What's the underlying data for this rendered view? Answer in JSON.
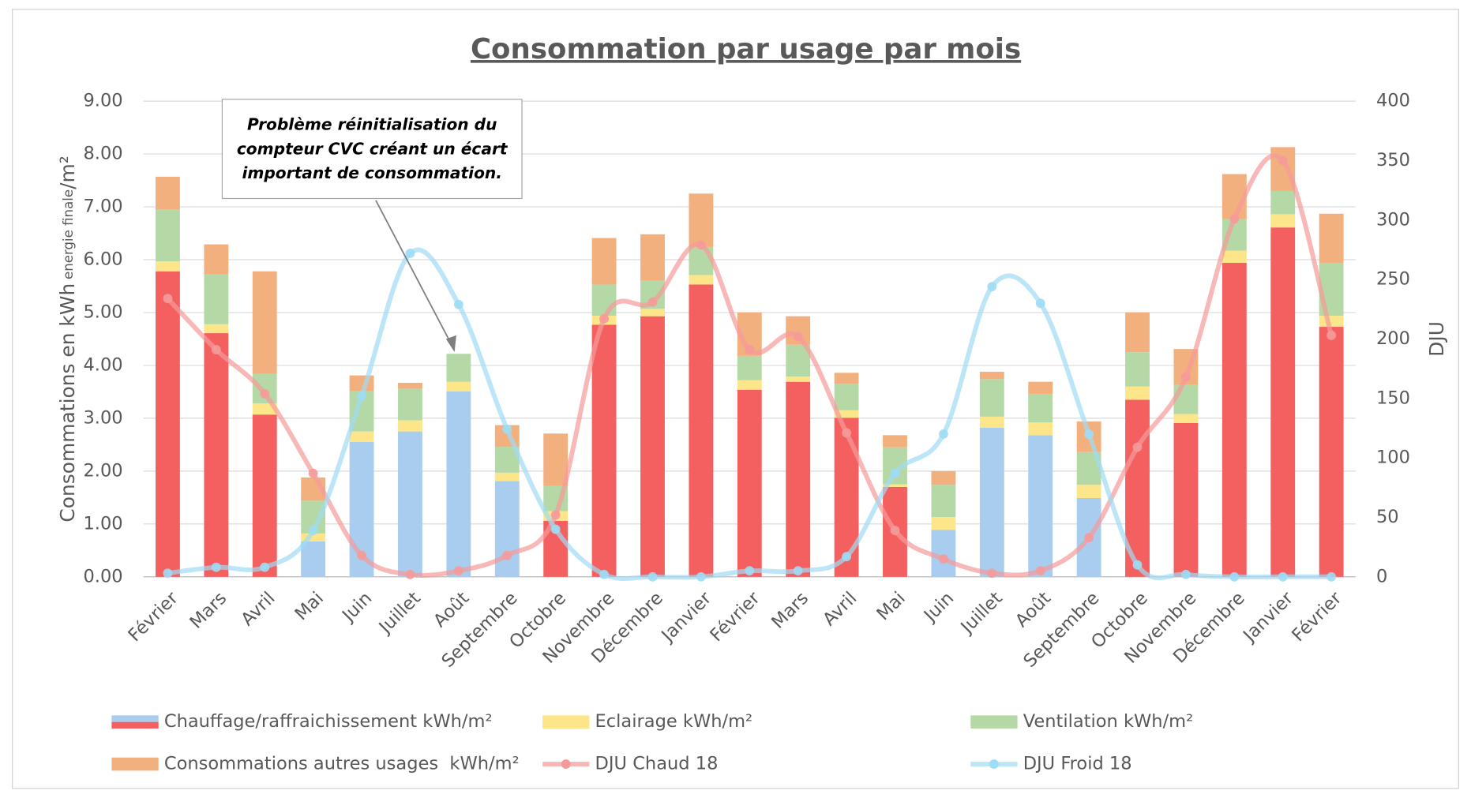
{
  "chart_data": {
    "type": "bar",
    "stacked": true,
    "title": "Consommation par usage par mois",
    "y_label": [
      "Consommations en kWh",
      "energie finale",
      "/m²"
    ],
    "y2_label": "DJU",
    "annotation": [
      "Problème réinitialisation du",
      "compteur CVC créant un écart",
      "important de consommation."
    ],
    "categories": [
      "Février",
      "Mars",
      "Avril",
      "Mai",
      "Juin",
      "Juillet",
      "Août",
      "Septembre",
      "Octobre",
      "Novembre",
      "Décembre",
      "Janvier",
      "Février",
      "Mars",
      "Avril",
      "Mai",
      "Juin",
      "Juillet",
      "Août",
      "Septembre",
      "Octobre",
      "Novembre",
      "Décembre",
      "Janvier",
      "Février"
    ],
    "ylim": [
      0,
      9
    ],
    "yticks": [
      {
        "value": 0,
        "label": "0.00"
      },
      {
        "value": 1,
        "label": "1.00"
      },
      {
        "value": 2,
        "label": "2.00"
      },
      {
        "value": 3,
        "label": "3.00"
      },
      {
        "value": 4,
        "label": "4.00"
      },
      {
        "value": 5,
        "label": "5.00"
      },
      {
        "value": 6,
        "label": "6.00"
      },
      {
        "value": 7,
        "label": "7.00"
      },
      {
        "value": 8,
        "label": "8.00"
      },
      {
        "value": 9,
        "label": "9.00"
      }
    ],
    "y2lim": [
      0,
      400
    ],
    "y2ticks": [
      0,
      50,
      100,
      150,
      200,
      250,
      300,
      350,
      400
    ],
    "grid": true,
    "legend": "bottom",
    "series": [
      {
        "name": "Chauffage/raffraichissement kWh/m²",
        "type": "bar",
        "color": "#f46060",
        "point_colors": [
          "#f46060",
          "#f46060",
          "#f46060",
          "#a9cdee",
          "#a9cdee",
          "#a9cdee",
          "#a9cdee",
          "#a9cdee",
          "#f46060",
          "#f46060",
          "#f46060",
          "#f46060",
          "#f46060",
          "#f46060",
          "#f46060",
          "#f46060",
          "#a9cdee",
          "#a9cdee",
          "#a9cdee",
          "#a9cdee",
          "#f46060",
          "#f46060",
          "#f46060",
          "#f46060",
          "#f46060"
        ],
        "values": [
          5.78,
          4.61,
          3.07,
          0.67,
          2.55,
          2.75,
          3.51,
          1.81,
          1.06,
          4.77,
          4.93,
          5.53,
          3.54,
          3.69,
          3.01,
          1.7,
          0.89,
          2.82,
          2.68,
          1.49,
          3.35,
          2.91,
          5.94,
          6.61,
          4.73
        ]
      },
      {
        "name": "Eclairage kWh/m²",
        "type": "bar",
        "color": "#fde58a",
        "values": [
          0.19,
          0.17,
          0.21,
          0.15,
          0.2,
          0.21,
          0.18,
          0.16,
          0.18,
          0.17,
          0.14,
          0.18,
          0.18,
          0.1,
          0.14,
          0.05,
          0.24,
          0.21,
          0.24,
          0.25,
          0.25,
          0.17,
          0.23,
          0.25,
          0.21
        ]
      },
      {
        "name": "Ventilation kWh/m²",
        "type": "bar",
        "color": "#b5d9a6",
        "values": [
          0.98,
          0.94,
          0.56,
          0.62,
          0.76,
          0.6,
          0.53,
          0.49,
          0.48,
          0.59,
          0.53,
          0.53,
          0.46,
          0.6,
          0.5,
          0.7,
          0.61,
          0.71,
          0.54,
          0.62,
          0.65,
          0.55,
          0.6,
          0.44,
          1.0
        ]
      },
      {
        "name": "Consommations autres usages  kWh/m²",
        "type": "bar",
        "color": "#f3b07f",
        "values": [
          0.62,
          0.57,
          1.94,
          0.44,
          0.3,
          0.11,
          0,
          0.41,
          0.99,
          0.88,
          0.88,
          1.01,
          0.82,
          0.54,
          0.21,
          0.23,
          0.26,
          0.14,
          0.23,
          0.58,
          0.75,
          0.68,
          0.85,
          0.83,
          0.93
        ]
      },
      {
        "name": "DJU Chaud 18",
        "type": "line",
        "axis": "y2",
        "color": "#f59a9a",
        "values": [
          234,
          191,
          154,
          87,
          18,
          2,
          5,
          18,
          52,
          217,
          231,
          279,
          191,
          202,
          121,
          39,
          15,
          3,
          5,
          33,
          109,
          168,
          301,
          350,
          203
        ]
      },
      {
        "name": "DJU Froid 18",
        "type": "line",
        "axis": "y2",
        "color": "#9fdcf5",
        "values": [
          3,
          8,
          8,
          39,
          152,
          272,
          229,
          124,
          40,
          2,
          0,
          0,
          5,
          5,
          17,
          87,
          120,
          244,
          230,
          120,
          10,
          2,
          0,
          0,
          0
        ]
      }
    ]
  }
}
